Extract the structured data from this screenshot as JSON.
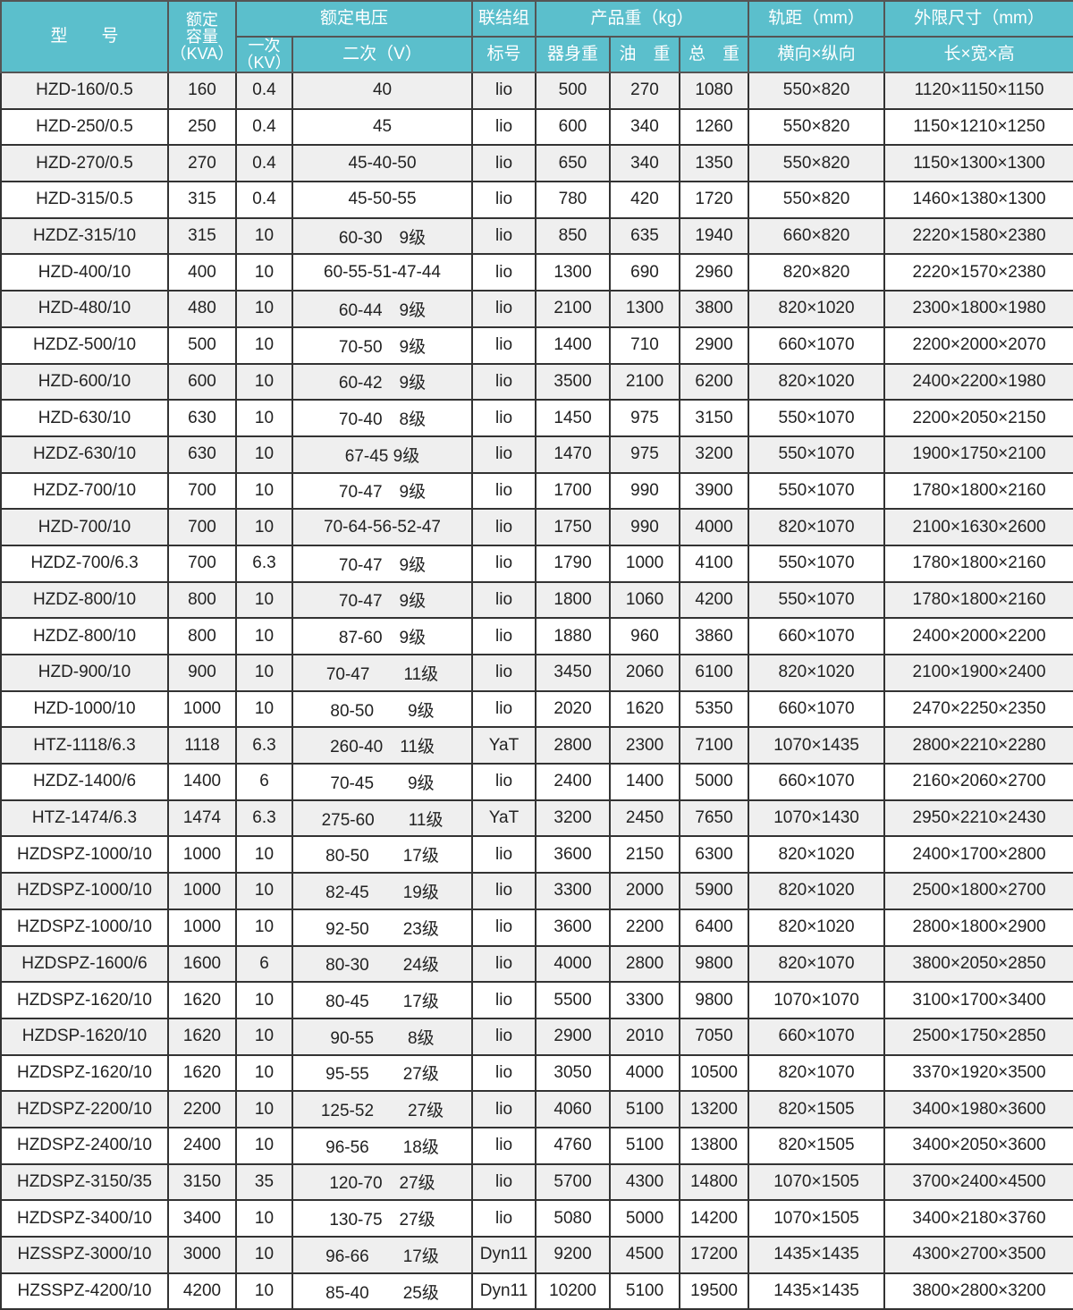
{
  "header": {
    "model": "型　　号",
    "capacity": [
      "额定",
      "容量",
      "（KVA）"
    ],
    "rated_voltage": "额定电压",
    "primary": [
      "一次",
      "（KV）"
    ],
    "secondary": "二次（V）",
    "connection_group": "联结组",
    "connection_label": "标号",
    "weight": "产品重（kg）",
    "body_weight": "器身重",
    "oil_weight": "油　重",
    "total_weight": "总　重",
    "gauge": "轨距（mm）",
    "gauge_sub": "横向×纵向",
    "dimensions": "外限尺寸（mm）",
    "dimensions_sub": "长×宽×高"
  },
  "rows": [
    [
      "HZD-160/0.5",
      "160",
      "0.4",
      "40",
      "lio",
      "500",
      "270",
      "1080",
      "550×820",
      "1120×1150×1150"
    ],
    [
      "HZD-250/0.5",
      "250",
      "0.4",
      "45",
      "lio",
      "600",
      "340",
      "1260",
      "550×820",
      "1150×1210×1250"
    ],
    [
      "HZD-270/0.5",
      "270",
      "0.4",
      "45-40-50",
      "lio",
      "650",
      "340",
      "1350",
      "550×820",
      "1150×1300×1300"
    ],
    [
      "HZD-315/0.5",
      "315",
      "0.4",
      "45-50-55",
      "lio",
      "780",
      "420",
      "1720",
      "550×820",
      "1460×1380×1300"
    ],
    [
      "HZDZ-315/10",
      "315",
      "10",
      "60-30　9级",
      "lio",
      "850",
      "635",
      "1940",
      "660×820",
      "2220×1580×2380"
    ],
    [
      "HZD-400/10",
      "400",
      "10",
      "60-55-51-47-44",
      "lio",
      "1300",
      "690",
      "2960",
      "820×820",
      "2220×1570×2380"
    ],
    [
      "HZD-480/10",
      "480",
      "10",
      "60-44　9级",
      "lio",
      "2100",
      "1300",
      "3800",
      "820×1020",
      "2300×1800×1980"
    ],
    [
      "HZDZ-500/10",
      "500",
      "10",
      "70-50　9级",
      "lio",
      "1400",
      "710",
      "2900",
      "660×1070",
      "2200×2000×2070"
    ],
    [
      "HZD-600/10",
      "600",
      "10",
      "60-42　9级",
      "lio",
      "3500",
      "2100",
      "6200",
      "820×1020",
      "2400×2200×1980"
    ],
    [
      "HZD-630/10",
      "630",
      "10",
      "70-40　8级",
      "lio",
      "1450",
      "975",
      "3150",
      "550×1070",
      "2200×2050×2150"
    ],
    [
      "HZDZ-630/10",
      "630",
      "10",
      "67-45 9级",
      "lio",
      "1470",
      "975",
      "3200",
      "550×1070",
      "1900×1750×2100"
    ],
    [
      "HZDZ-700/10",
      "700",
      "10",
      "70-47　9级",
      "lio",
      "1700",
      "990",
      "3900",
      "550×1070",
      "1780×1800×2160"
    ],
    [
      "HZD-700/10",
      "700",
      "10",
      "70-64-56-52-47",
      "lio",
      "1750",
      "990",
      "4000",
      "820×1070",
      "2100×1630×2600"
    ],
    [
      "HZDZ-700/6.3",
      "700",
      "6.3",
      "70-47　9级",
      "lio",
      "1790",
      "1000",
      "4100",
      "550×1070",
      "1780×1800×2160"
    ],
    [
      "HZDZ-800/10",
      "800",
      "10",
      "70-47　9级",
      "lio",
      "1800",
      "1060",
      "4200",
      "550×1070",
      "1780×1800×2160"
    ],
    [
      "HZDZ-800/10",
      "800",
      "10",
      "87-60　9级",
      "lio",
      "1880",
      "960",
      "3860",
      "660×1070",
      "2400×2000×2200"
    ],
    [
      "HZD-900/10",
      "900",
      "10",
      "70-47　　11级",
      "lio",
      "3450",
      "2060",
      "6100",
      "820×1020",
      "2100×1900×2400"
    ],
    [
      "HZD-1000/10",
      "1000",
      "10",
      "80-50　　9级",
      "lio",
      "2020",
      "1620",
      "5350",
      "660×1070",
      "2470×2250×2350"
    ],
    [
      "HTZ-1118/6.3",
      "1118",
      "6.3",
      "260-40　11级",
      "YaT",
      "2800",
      "2300",
      "7100",
      "1070×1435",
      "2800×2210×2280"
    ],
    [
      "HZDZ-1400/6",
      "1400",
      "6",
      "70-45　　9级",
      "lio",
      "2400",
      "1400",
      "5000",
      "660×1070",
      "2160×2060×2700"
    ],
    [
      "HTZ-1474/6.3",
      "1474",
      "6.3",
      "275-60　　11级",
      "YaT",
      "3200",
      "2450",
      "7650",
      "1070×1430",
      "2950×2210×2430"
    ],
    [
      "HZDSPZ-1000/10",
      "1000",
      "10",
      "80-50　　17级",
      "lio",
      "3600",
      "2150",
      "6300",
      "820×1020",
      "2400×1700×2800"
    ],
    [
      "HZDSPZ-1000/10",
      "1000",
      "10",
      "82-45　　19级",
      "lio",
      "3300",
      "2000",
      "5900",
      "820×1020",
      "2500×1800×2700"
    ],
    [
      "HZDSPZ-1000/10",
      "1000",
      "10",
      "92-50　　23级",
      "lio",
      "3600",
      "2200",
      "6400",
      "820×1020",
      "2800×1800×2900"
    ],
    [
      "HZDSPZ-1600/6",
      "1600",
      "6",
      "80-30　　24级",
      "lio",
      "4000",
      "2800",
      "9800",
      "820×1070",
      "3800×2050×2850"
    ],
    [
      "HZDSPZ-1620/10",
      "1620",
      "10",
      "80-45　　17级",
      "lio",
      "5500",
      "3300",
      "9800",
      "1070×1070",
      "3100×1700×3400"
    ],
    [
      "HZDSP-1620/10",
      "1620",
      "10",
      "90-55　　8级",
      "lio",
      "2900",
      "2010",
      "7050",
      "660×1070",
      "2500×1750×2850"
    ],
    [
      "HZDSPZ-1620/10",
      "1620",
      "10",
      "95-55　　27级",
      "lio",
      "3050",
      "4000",
      "10500",
      "820×1070",
      "3370×1920×3500"
    ],
    [
      "HZDSPZ-2200/10",
      "2200",
      "10",
      "125-52　　27级",
      "lio",
      "4060",
      "5100",
      "13200",
      "820×1505",
      "3400×1980×3600"
    ],
    [
      "HZDSPZ-2400/10",
      "2400",
      "10",
      "96-56　　18级",
      "lio",
      "4760",
      "5100",
      "13800",
      "820×1505",
      "3400×2050×3600"
    ],
    [
      "HZDSPZ-3150/35",
      "3150",
      "35",
      "120-70　27级",
      "lio",
      "5700",
      "4300",
      "14800",
      "1070×1505",
      "3700×2400×4500"
    ],
    [
      "HZDSPZ-3400/10",
      "3400",
      "10",
      "130-75　27级",
      "lio",
      "5080",
      "5000",
      "14200",
      "1070×1505",
      "3400×2180×3760"
    ],
    [
      "HZSSPZ-3000/10",
      "3000",
      "10",
      "96-66　　17级",
      "Dyn11",
      "9200",
      "4500",
      "17200",
      "1435×1435",
      "4300×2700×3500"
    ],
    [
      "HZSSPZ-4200/10",
      "4200",
      "10",
      "85-40　　25级",
      "Dyn11",
      "10200",
      "5100",
      "19500",
      "1435×1435",
      "3800×2800×3200"
    ]
  ],
  "colors": {
    "header_bg": "#5bbfcc",
    "row_alt_bg": "#efefef"
  }
}
